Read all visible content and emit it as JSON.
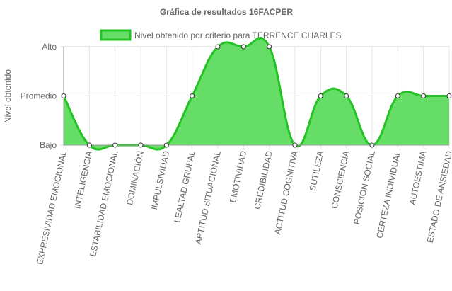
{
  "chart_data": {
    "type": "area",
    "title": "Gráfica de resultados 16FACPER",
    "xlabel": "",
    "ylabel": "Nivel obtenido",
    "y_levels": [
      "Bajo",
      "Promedio",
      "Alto"
    ],
    "ylim": [
      0,
      2
    ],
    "grid": true,
    "legend_position": "top",
    "categories": [
      "EXPRESIVIDAD EMOCIONAL",
      "INTELIGENCIA",
      "ESTABILIDAD EMOCIONAL",
      "DOMINACIÓN",
      "IMPULSIVIDAD",
      "LEALTAD GRUPAL",
      "APTITUD SITUACIONAL",
      "EMOTIVIDAD",
      "CREDIBILIDAD",
      "ACTITUD COGNITIVA",
      "SUTILEZA",
      "CONSCIENCIA",
      "POSICIÓN SOCIAL",
      "CERTEZA INDIVIDUAL",
      "AUTOESTIMA",
      "ESTADO DE ANSIEDAD"
    ],
    "series": [
      {
        "name": "Nivel obtenido por criterio para TERRENCE CHARLES",
        "values": [
          1,
          0,
          0,
          0,
          0,
          1,
          2,
          2,
          2,
          0,
          1,
          1,
          0,
          1,
          1,
          1
        ],
        "line_color": "#22c322",
        "fill_color": "#66dd66"
      }
    ]
  }
}
